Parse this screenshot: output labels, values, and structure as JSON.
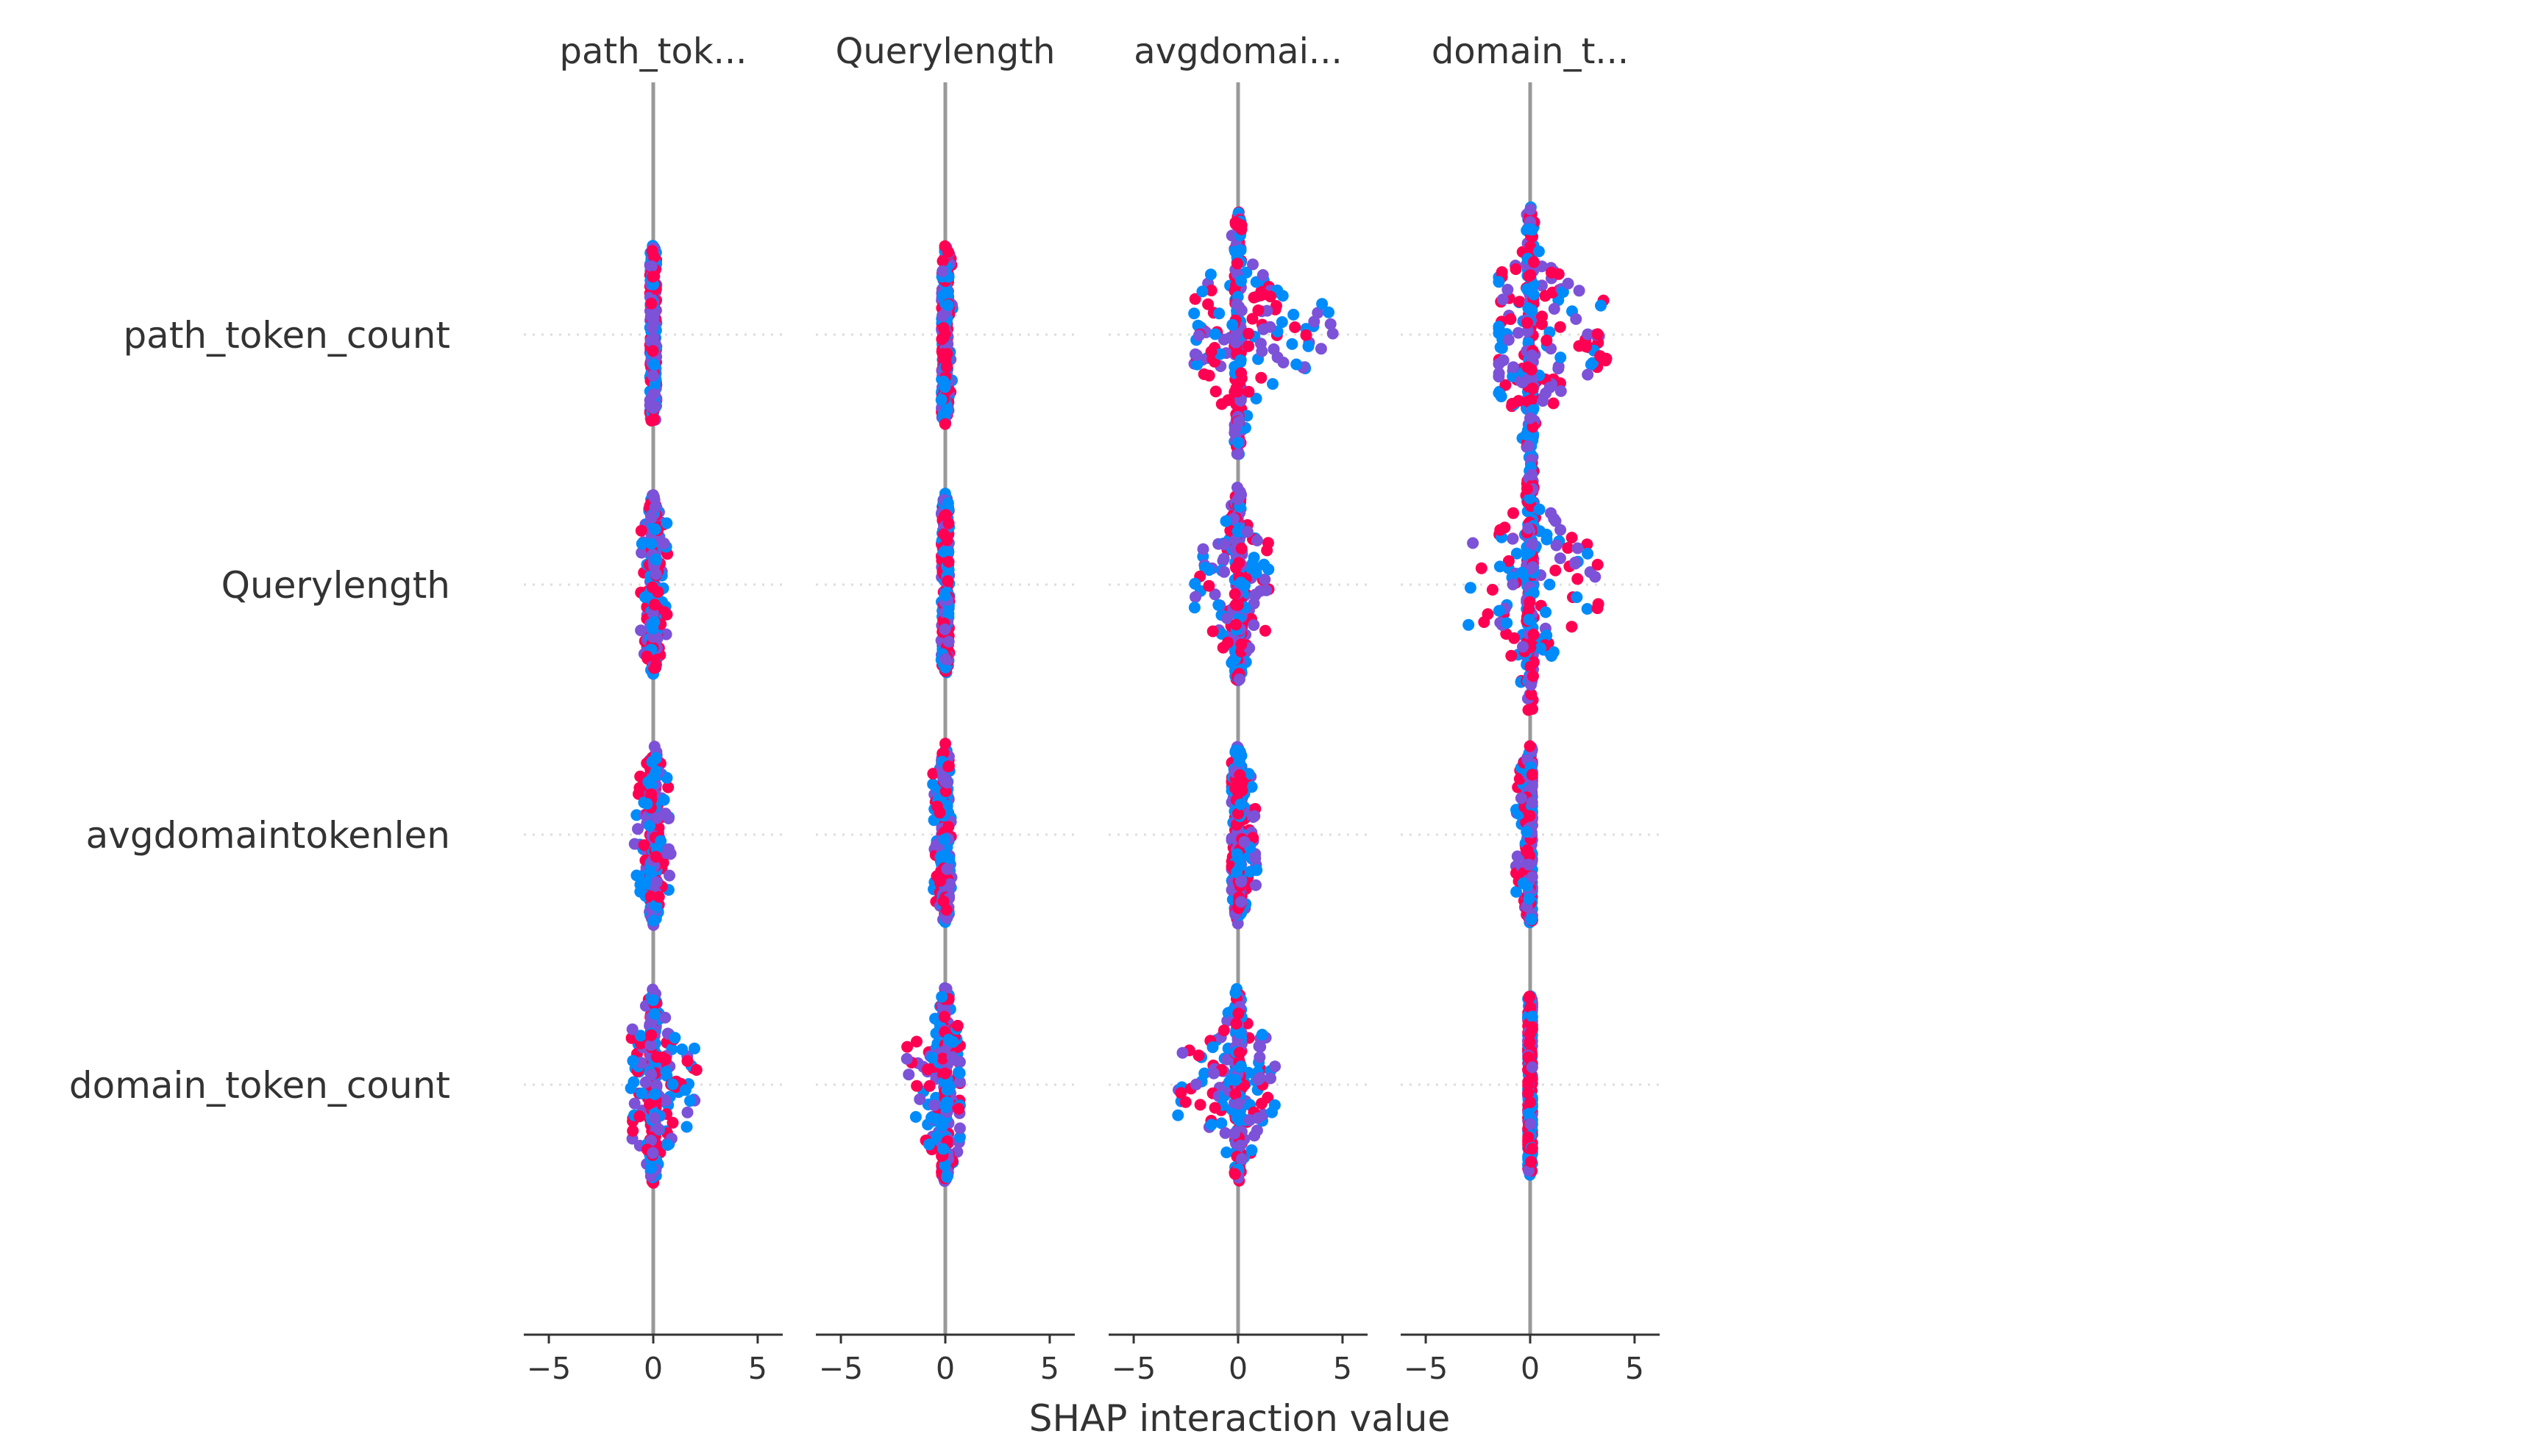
{
  "chart_data": {
    "type": "scatter",
    "subtype": "shap-interaction-summary",
    "xlabel": "SHAP interaction value",
    "column_titles": [
      "path_tok...",
      "Querylength",
      "avgdomai...",
      "domain_t..."
    ],
    "row_labels": [
      "path_token_count",
      "Querylength",
      "avgdomaintokenlen",
      "domain_token_count"
    ],
    "xlim": [
      -6.2,
      6.2
    ],
    "xticks": [
      -5,
      0,
      5
    ],
    "xtick_labels": [
      "−5",
      "0",
      "5"
    ],
    "grid": false,
    "colors": {
      "low_feature_value": "#008bfb",
      "mid_feature_value": "#7c52d8",
      "high_feature_value": "#ff0052",
      "zero_line": "#999999",
      "row_guides": "#dddddd",
      "axis": "#333333"
    },
    "cells": [
      [
        {
          "min": -0.15,
          "max": 0.15,
          "spread": 0.55
        },
        {
          "min": -0.2,
          "max": 0.35,
          "spread": 0.55
        },
        {
          "min": -2.2,
          "max": 4.6,
          "spread": 0.75
        },
        {
          "min": -1.5,
          "max": 3.7,
          "spread": 0.8
        }
      ],
      [
        {
          "min": -0.7,
          "max": 0.7,
          "spread": 0.55
        },
        {
          "min": -0.2,
          "max": 0.2,
          "spread": 0.55
        },
        {
          "min": -2.1,
          "max": 1.7,
          "spread": 0.6
        },
        {
          "min": -3.3,
          "max": 3.4,
          "spread": 0.8
        }
      ],
      [
        {
          "min": -0.9,
          "max": 0.9,
          "spread": 0.55
        },
        {
          "min": -0.6,
          "max": 0.3,
          "spread": 0.55
        },
        {
          "min": -0.3,
          "max": 0.9,
          "spread": 0.55
        },
        {
          "min": -0.7,
          "max": 0.1,
          "spread": 0.55
        }
      ],
      [
        {
          "min": -1.2,
          "max": 2.3,
          "spread": 0.6
        },
        {
          "min": -1.9,
          "max": 0.7,
          "spread": 0.6
        },
        {
          "min": -3.0,
          "max": 2.0,
          "spread": 0.6
        },
        {
          "min": -0.1,
          "max": 0.1,
          "spread": 0.55
        }
      ]
    ]
  }
}
